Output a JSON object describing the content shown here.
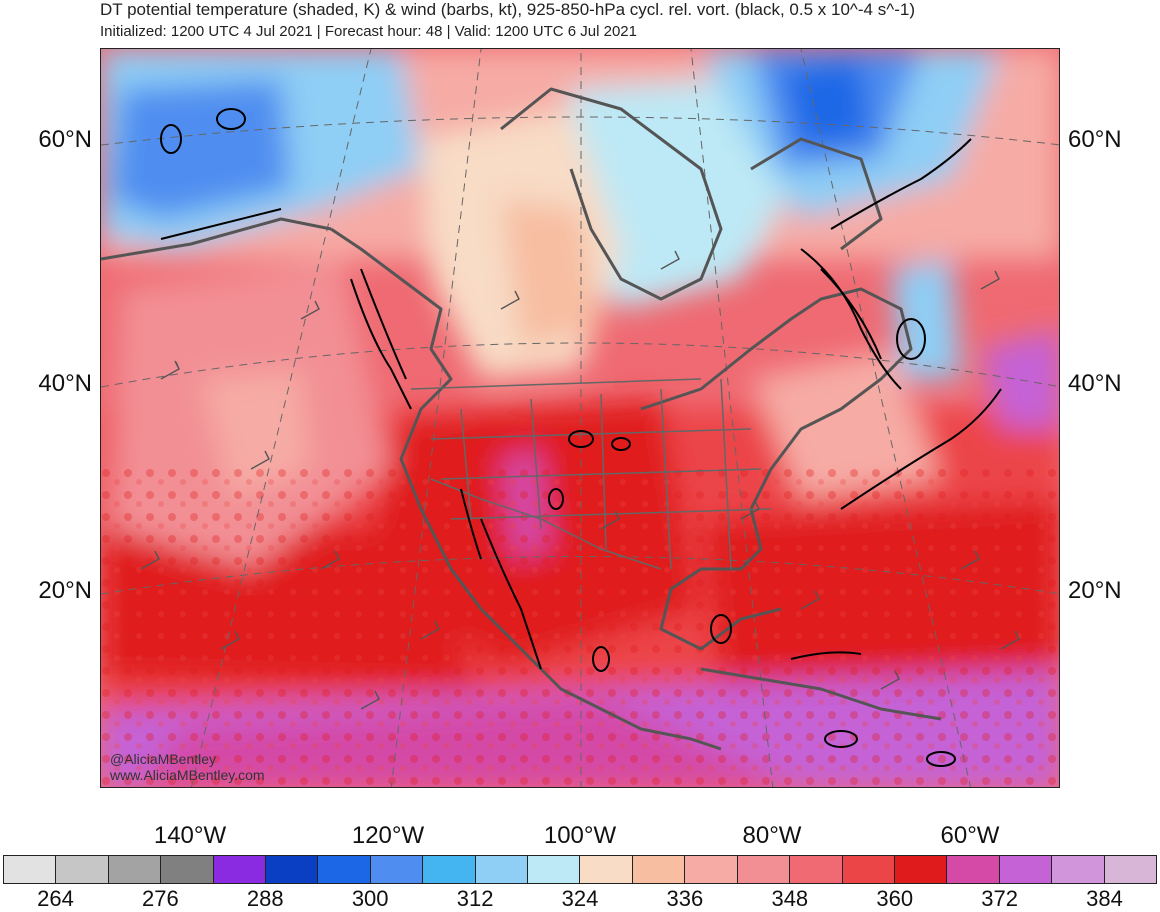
{
  "header": {
    "title": "DT potential temperature (shaded, K) & wind (barbs, kt), 925-850-hPa cycl. rel. vort. (black, 0.5 x 10^-4 s^-1)",
    "subtitle": "Initialized: 1200 UTC 4 Jul 2021 | Forecast hour: 48 | Valid: 1200 UTC 6 Jul 2021"
  },
  "map": {
    "lat_labels": [
      "60°N",
      "40°N",
      "20°N"
    ],
    "lon_labels": [
      "140°W",
      "120°W",
      "100°W",
      "80°W",
      "60°W"
    ],
    "credit_handle": "@AliciaMBentley",
    "credit_site": "www.AliciaMBentley.com"
  },
  "colorbar": {
    "colors": [
      "#e2e2e2",
      "#c6c6c6",
      "#a3a3a3",
      "#808080",
      "#8a2be2",
      "#0a3fc4",
      "#1c67e6",
      "#4f8ef0",
      "#45b5f2",
      "#8fcef5",
      "#bde8f5",
      "#f8dcc6",
      "#f7bea2",
      "#f6aba5",
      "#f28f94",
      "#ef6a72",
      "#ec4548",
      "#e01b1b",
      "#d44aa6",
      "#c562d6",
      "#d195dc",
      "#d8b6d8"
    ],
    "labels": [
      "264",
      "276",
      "288",
      "300",
      "312",
      "324",
      "336",
      "348",
      "360",
      "372",
      "384"
    ]
  }
}
